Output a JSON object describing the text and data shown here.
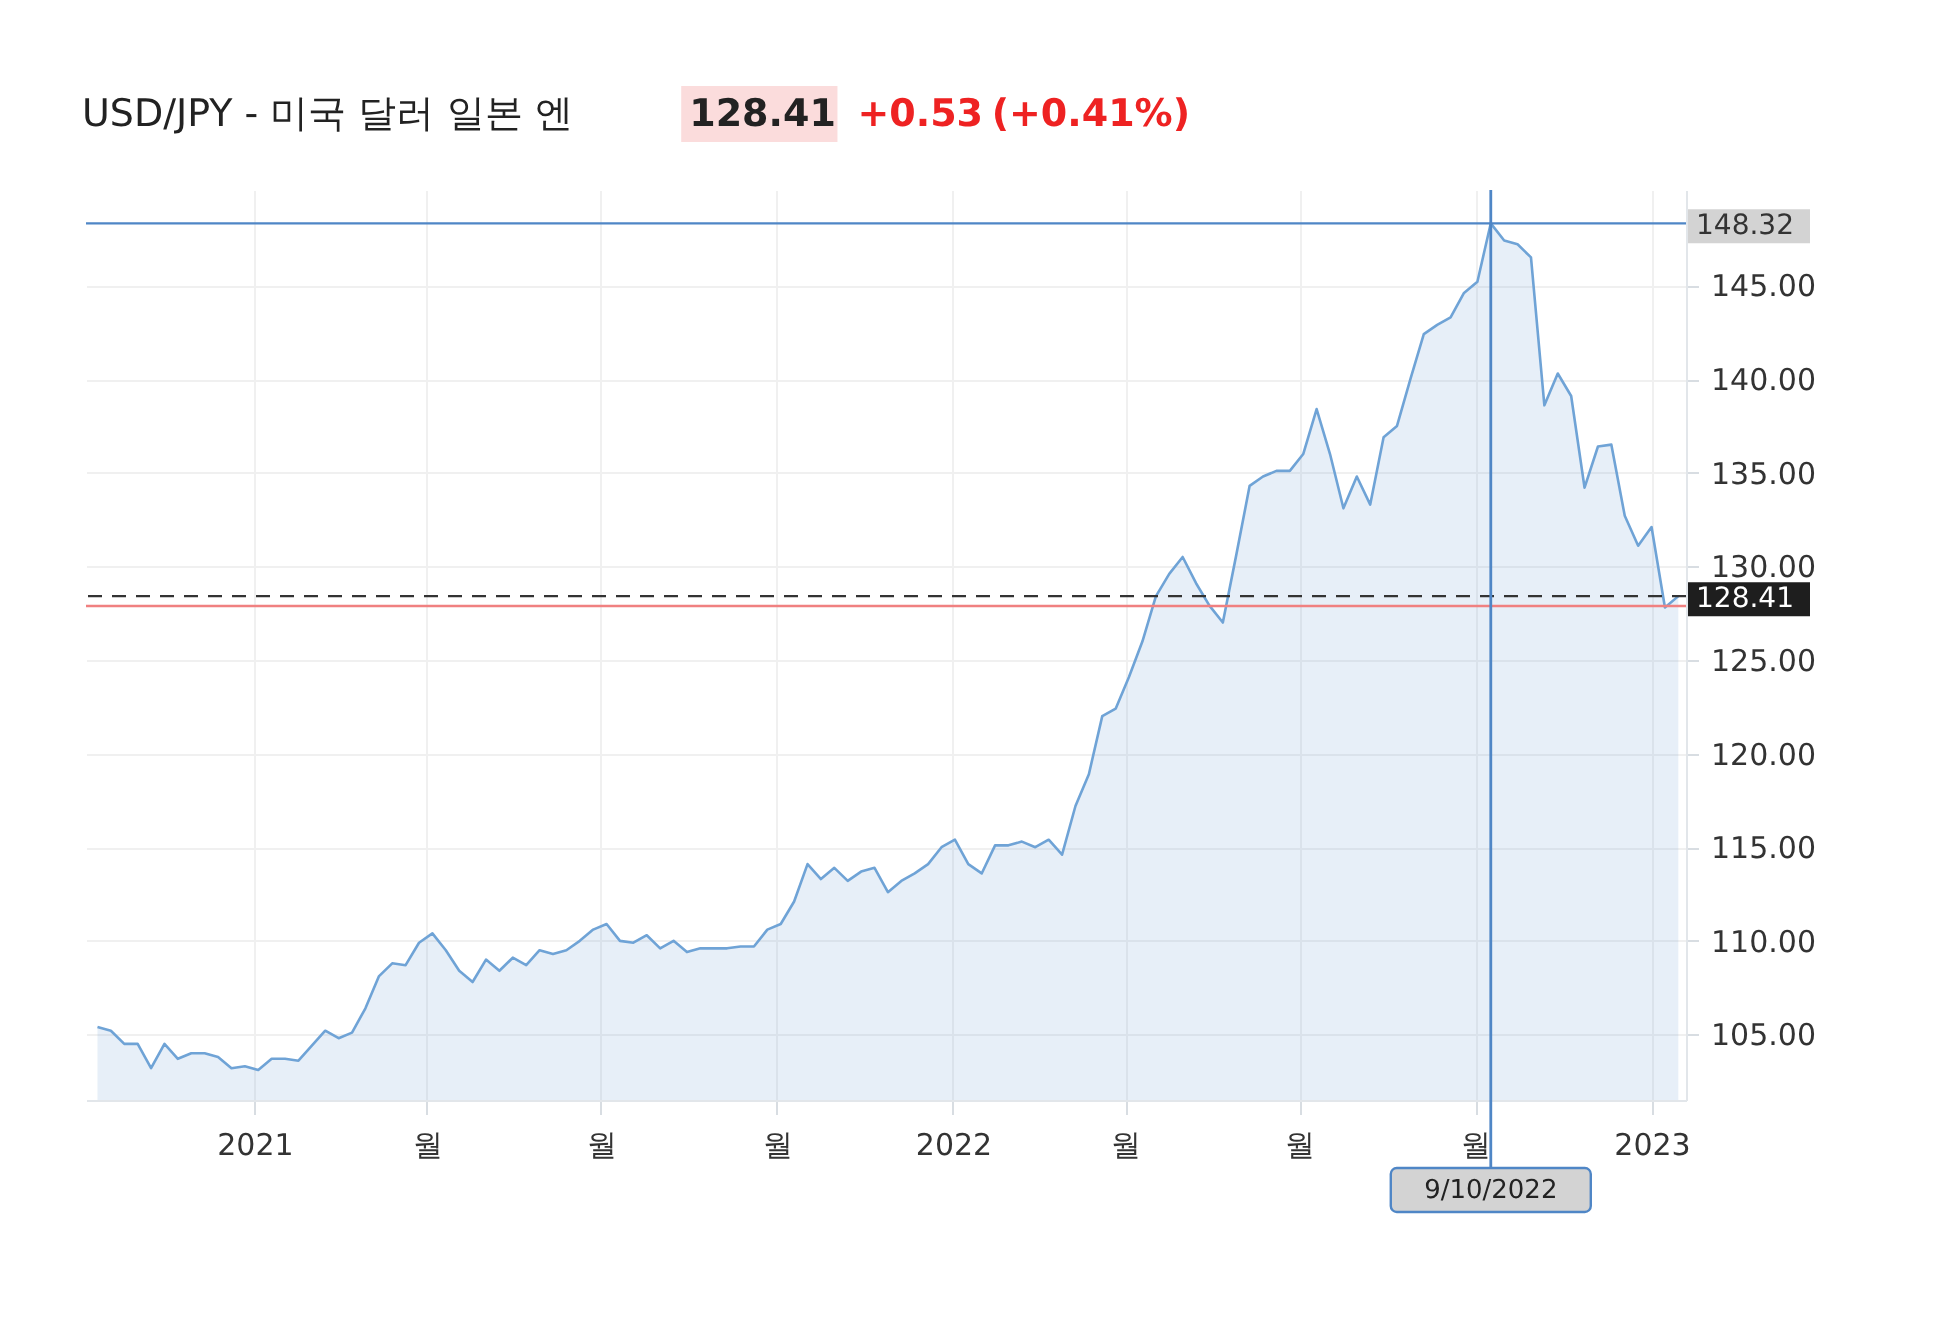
{
  "chart_data": {
    "type": "area",
    "title": "USD/JPY - 미국 달러 일본 엔",
    "annotations": [
      "128.41",
      "+0.53",
      "(+0.41%)"
    ],
    "x": [
      "2020-10-11",
      "2020-10-18",
      "2020-10-25",
      "2020-11-01",
      "2020-11-08",
      "2020-11-15",
      "2020-11-22",
      "2020-11-29",
      "2020-12-06",
      "2020-12-13",
      "2020-12-20",
      "2020-12-27",
      "2021-01-03",
      "2021-01-10",
      "2021-01-17",
      "2021-01-24",
      "2021-01-31",
      "2021-02-07",
      "2021-02-14",
      "2021-02-21",
      "2021-02-28",
      "2021-03-07",
      "2021-03-14",
      "2021-03-21",
      "2021-03-28",
      "2021-04-04",
      "2021-04-11",
      "2021-04-18",
      "2021-04-25",
      "2021-05-02",
      "2021-05-09",
      "2021-05-16",
      "2021-05-23",
      "2021-05-30",
      "2021-06-06",
      "2021-06-13",
      "2021-06-20",
      "2021-06-27",
      "2021-07-04",
      "2021-07-11",
      "2021-07-18",
      "2021-07-25",
      "2021-08-01",
      "2021-08-08",
      "2021-08-15",
      "2021-08-22",
      "2021-08-29",
      "2021-09-05",
      "2021-09-12",
      "2021-09-19",
      "2021-09-26",
      "2021-10-03",
      "2021-10-10",
      "2021-10-17",
      "2021-10-24",
      "2021-10-31",
      "2021-11-07",
      "2021-11-14",
      "2021-11-21",
      "2021-11-28",
      "2021-12-05",
      "2021-12-12",
      "2021-12-19",
      "2021-12-26",
      "2022-01-02",
      "2022-01-09",
      "2022-01-16",
      "2022-01-23",
      "2022-01-30",
      "2022-02-06",
      "2022-02-13",
      "2022-02-20",
      "2022-02-27",
      "2022-03-06",
      "2022-03-13",
      "2022-03-20",
      "2022-03-27",
      "2022-04-03",
      "2022-04-10",
      "2022-04-17",
      "2022-04-24",
      "2022-05-01",
      "2022-05-08",
      "2022-05-15",
      "2022-05-22",
      "2022-05-29",
      "2022-06-05",
      "2022-06-12",
      "2022-06-19",
      "2022-06-26",
      "2022-07-03",
      "2022-07-10",
      "2022-07-17",
      "2022-07-24",
      "2022-07-31",
      "2022-08-07",
      "2022-08-14",
      "2022-08-21",
      "2022-08-28",
      "2022-09-04",
      "2022-09-11",
      "2022-09-18",
      "2022-09-25",
      "2022-10-02",
      "2022-10-09",
      "2022-10-16",
      "2022-10-23",
      "2022-10-30",
      "2022-11-06",
      "2022-11-13",
      "2022-11-20",
      "2022-11-27",
      "2022-12-04",
      "2022-12-11",
      "2022-12-18",
      "2022-12-25",
      "2023-01-01",
      "2023-01-08",
      "2023-01-15"
    ],
    "series": [
      {
        "color": "#6fa3d6",
        "values": [
          105.4,
          105.2,
          104.5,
          104.5,
          103.2,
          104.5,
          103.7,
          104.0,
          104.0,
          103.8,
          103.2,
          103.3,
          103.1,
          103.7,
          103.7,
          103.6,
          104.4,
          105.2,
          104.8,
          105.1,
          106.4,
          108.1,
          108.8,
          108.7,
          109.9,
          110.4,
          109.5,
          108.4,
          107.8,
          109.0,
          108.4,
          109.1,
          108.7,
          109.5,
          109.3,
          109.5,
          110.0,
          110.6,
          110.9,
          110.0,
          109.9,
          110.3,
          109.6,
          110.0,
          109.4,
          109.6,
          109.6,
          109.6,
          109.7,
          109.7,
          110.6,
          110.9,
          112.1,
          114.1,
          113.3,
          113.9,
          113.2,
          113.7,
          113.9,
          112.6,
          113.2,
          113.6,
          114.1,
          115.0,
          115.4,
          114.1,
          113.6,
          115.1,
          115.1,
          115.3,
          115.0,
          115.4,
          114.6,
          117.2,
          118.9,
          122.0,
          122.4,
          124.1,
          126.0,
          128.4,
          129.6,
          130.5,
          129.1,
          127.9,
          127.0,
          130.6,
          134.3,
          134.8,
          135.1,
          135.1,
          136.0,
          138.4,
          136.0,
          133.1,
          134.8,
          133.3,
          136.9,
          137.5,
          140.0,
          142.4,
          142.9,
          143.3,
          144.6,
          145.2,
          148.32,
          147.4,
          147.2,
          146.5,
          138.6,
          140.3,
          139.1,
          134.2,
          136.4,
          136.5,
          132.7,
          131.1,
          132.1,
          127.8,
          128.41
        ]
      }
    ],
    "xlim": [
      "2020-10-05",
      "2023-01-19"
    ],
    "xticks": [
      {
        "value": "2021-01-01",
        "label": "2021"
      },
      {
        "value": "2021-04-01",
        "label": "월"
      },
      {
        "value": "2021-07-01",
        "label": "월"
      },
      {
        "value": "2021-10-01",
        "label": "월"
      },
      {
        "value": "2022-01-01",
        "label": "2022"
      },
      {
        "value": "2022-04-01",
        "label": "월"
      },
      {
        "value": "2022-07-01",
        "label": "월"
      },
      {
        "value": "2022-10-01",
        "label": "월"
      },
      {
        "value": "2023-01-01",
        "label": "2023"
      }
    ],
    "ylim": [
      101.5,
      150.1
    ],
    "yticks": [
      {
        "value": 105,
        "label": "105.00"
      },
      {
        "value": 110,
        "label": "110.00"
      },
      {
        "value": 115,
        "label": "115.00"
      },
      {
        "value": 120,
        "label": "120.00"
      },
      {
        "value": 125,
        "label": "125.00"
      },
      {
        "value": 130,
        "label": "130.00"
      },
      {
        "value": 135,
        "label": "135.00"
      },
      {
        "value": 140,
        "label": "140.00"
      },
      {
        "value": 145,
        "label": "145.00"
      }
    ],
    "ref_lines": [
      {
        "axis": "y",
        "value": 148.32,
        "label": "148.32",
        "color": "#4f86c6",
        "line_style": "solid"
      },
      {
        "axis": "y",
        "value": 128.41,
        "label": "128.41",
        "color": "#333333",
        "line_style": "dashed"
      },
      {
        "axis": "y",
        "value": 127.88,
        "color": "#f08080",
        "line_style": "solid"
      },
      {
        "axis": "x",
        "value": "2022-10-09",
        "label": "9/10/2022",
        "color": "#4f86c6",
        "line_style": "solid"
      }
    ],
    "grid": true
  }
}
